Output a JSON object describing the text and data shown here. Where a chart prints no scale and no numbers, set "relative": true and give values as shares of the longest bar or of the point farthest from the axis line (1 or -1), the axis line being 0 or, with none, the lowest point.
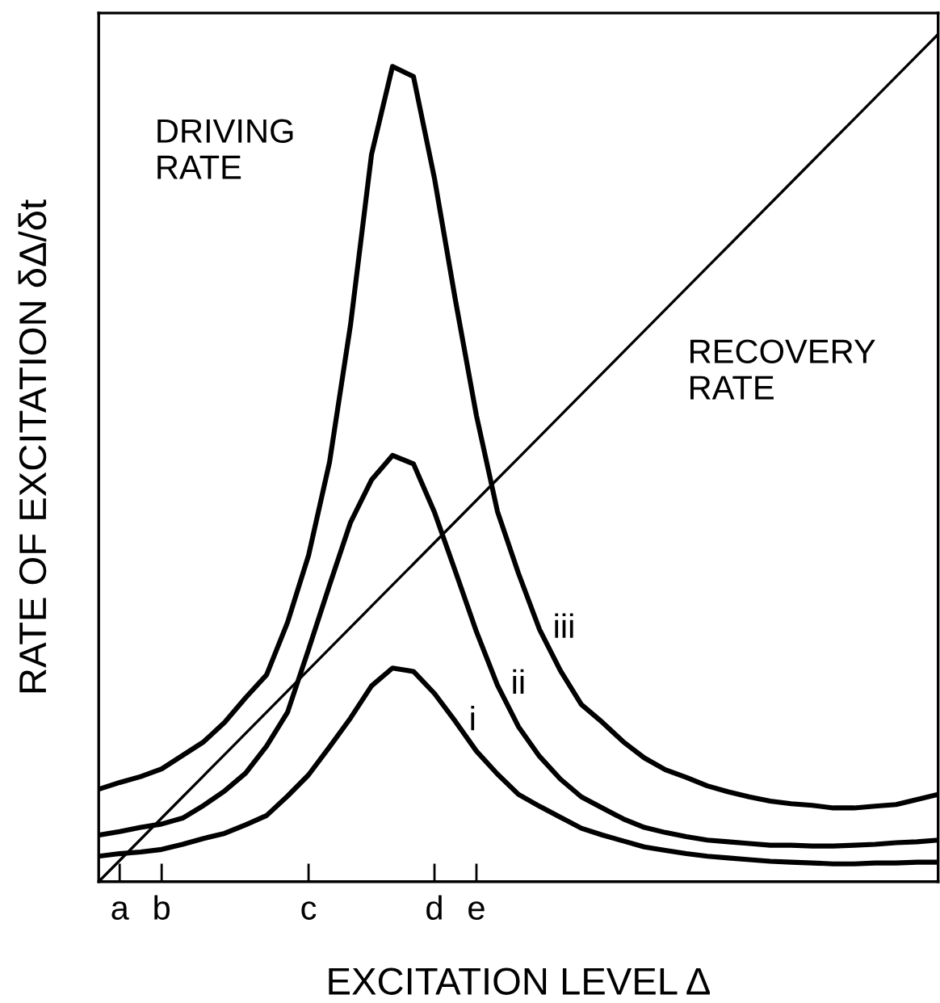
{
  "chart_data": {
    "type": "line",
    "relative": true,
    "xlabel": "EXCITATION LEVEL Δ",
    "ylabel": "RATE OF EXCITATION δΔ/δt",
    "categories": [
      null,
      "a",
      null,
      "b",
      null,
      null,
      null,
      null,
      null,
      null,
      "c",
      null,
      null,
      null,
      null,
      null,
      "d",
      null,
      "e",
      null,
      null,
      null,
      null,
      null,
      null,
      null,
      null,
      null,
      null,
      null,
      null,
      null,
      null,
      null,
      null,
      null,
      null,
      null,
      null,
      null,
      null
    ],
    "grid": false,
    "legend": false,
    "marker": "none",
    "line_style": "solid",
    "series": [
      {
        "name": "iii",
        "color": "#000000",
        "values": [
          0.109,
          0.117,
          0.124,
          0.133,
          0.149,
          0.165,
          0.188,
          0.217,
          0.244,
          0.306,
          0.385,
          0.495,
          0.657,
          0.858,
          0.962,
          0.95,
          0.83,
          0.686,
          0.55,
          0.437,
          0.364,
          0.298,
          0.249,
          0.209,
          0.188,
          0.165,
          0.146,
          0.132,
          0.123,
          0.113,
          0.106,
          0.1,
          0.095,
          0.092,
          0.09,
          0.087,
          0.087,
          0.089,
          0.091,
          0.097,
          0.103
        ]
      },
      {
        "name": "ii",
        "color": "#000000",
        "values": [
          0.055,
          0.059,
          0.064,
          0.068,
          0.075,
          0.09,
          0.107,
          0.128,
          0.16,
          0.2,
          0.274,
          0.35,
          0.424,
          0.474,
          0.503,
          0.493,
          0.436,
          0.366,
          0.295,
          0.232,
          0.183,
          0.148,
          0.121,
          0.1,
          0.087,
          0.074,
          0.064,
          0.058,
          0.053,
          0.049,
          0.047,
          0.045,
          0.043,
          0.043,
          0.042,
          0.042,
          0.043,
          0.044,
          0.046,
          0.047,
          0.049
        ]
      },
      {
        "name": "i",
        "color": "#000000",
        "values": [
          0.03,
          0.033,
          0.035,
          0.038,
          0.044,
          0.051,
          0.057,
          0.067,
          0.078,
          0.101,
          0.126,
          0.159,
          0.193,
          0.231,
          0.252,
          0.248,
          0.222,
          0.189,
          0.154,
          0.127,
          0.103,
          0.089,
          0.076,
          0.063,
          0.055,
          0.048,
          0.041,
          0.037,
          0.033,
          0.03,
          0.028,
          0.026,
          0.024,
          0.023,
          0.022,
          0.021,
          0.021,
          0.022,
          0.022,
          0.023,
          0.023
        ]
      },
      {
        "name": "RECOVERY\nRATE",
        "color": "#000000",
        "values": [
          0,
          0.025,
          0.05,
          0.075,
          0.1,
          0.125,
          0.15,
          0.175,
          0.2,
          0.225,
          0.25,
          0.275,
          0.3,
          0.325,
          0.35,
          0.375,
          0.4,
          0.425,
          0.45,
          0.475,
          0.5,
          0.525,
          0.55,
          0.575,
          0.6,
          0.625,
          0.65,
          0.675,
          0.7,
          0.725,
          0.75,
          0.775,
          0.8,
          0.825,
          0.85,
          0.875,
          0.9,
          0.925,
          0.95,
          0.975,
          1
        ]
      }
    ],
    "annotations": [
      "DRIVING\nRATE"
    ]
  }
}
